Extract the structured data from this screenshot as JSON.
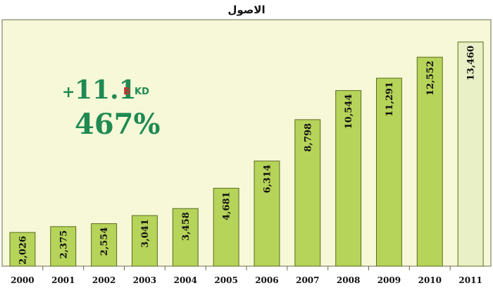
{
  "chart_data": {
    "type": "bar",
    "title": "الاصول",
    "categories": [
      "2000",
      "2001",
      "2002",
      "2003",
      "2004",
      "2005",
      "2006",
      "2007",
      "2008",
      "2009",
      "2010",
      "2011"
    ],
    "values": [
      2026,
      2375,
      2554,
      3041,
      3458,
      4681,
      6314,
      8798,
      10544,
      11291,
      12552,
      13460
    ],
    "value_labels": [
      "2,026",
      "2,375",
      "2,554",
      "3,041",
      "3,458",
      "4,681",
      "6,314",
      "8,798",
      "10,544",
      "11,291",
      "12,552",
      "13,460"
    ],
    "xlabel": "",
    "ylabel": "",
    "ylim": [
      0,
      14800
    ],
    "grid": false,
    "highlight_last_bar": true,
    "annotation": {
      "plus": "+",
      "growth_value": "11.1",
      "unit_b": "B",
      "unit_kd": "KD",
      "growth_percent": "467%"
    },
    "colors": {
      "panel_background": "#f6f8d8",
      "bar_fill": "#b6d35a",
      "bar_fill_highlight": "#e9f0c5",
      "bar_stroke": "#5a6b1c",
      "accent_green": "#1f8a52",
      "accent_red": "#d02a2a"
    }
  }
}
